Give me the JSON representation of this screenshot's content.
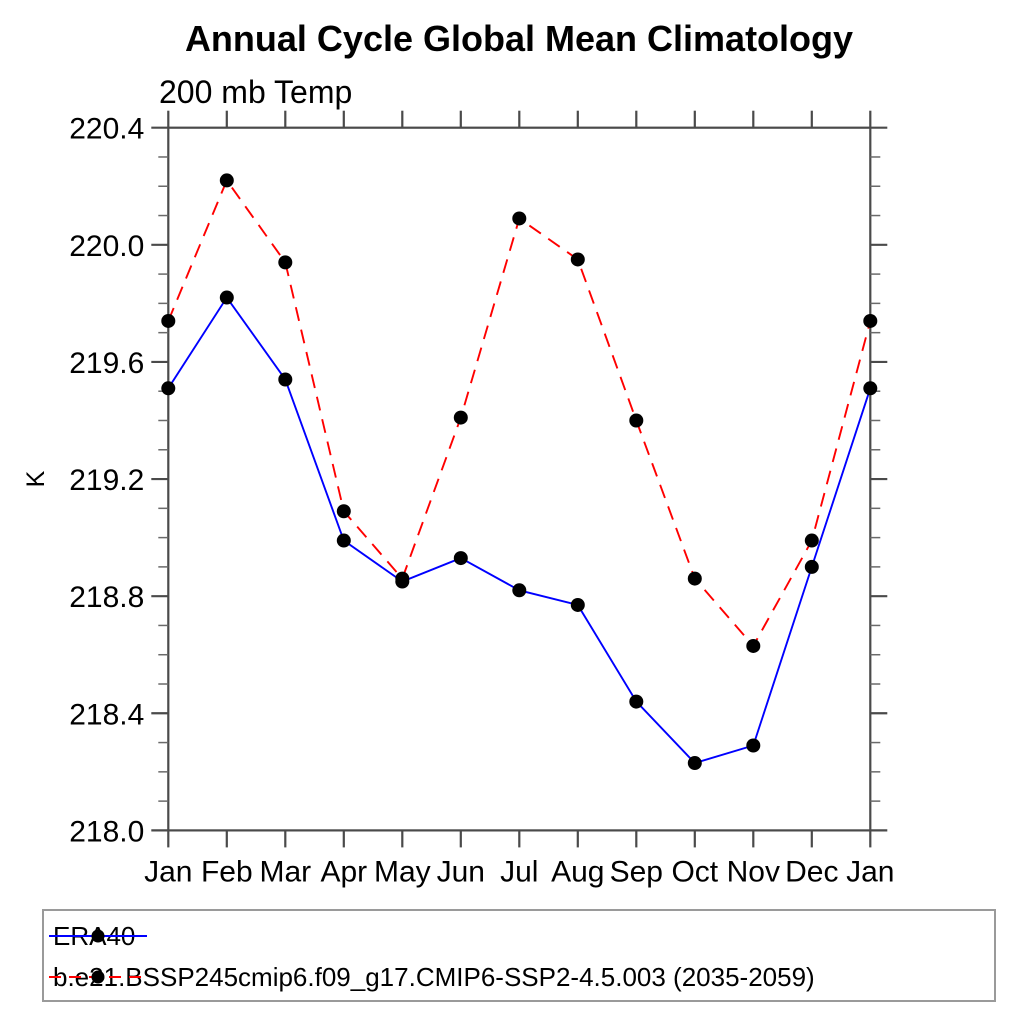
{
  "title": "Annual Cycle Global Mean Climatology",
  "subtitle": "200 mb Temp",
  "chart_data": {
    "type": "line",
    "title": "Annual Cycle Global Mean Climatology",
    "subtitle": "200 mb Temp",
    "xlabel": "",
    "ylabel": "K",
    "categories": [
      "Jan",
      "Feb",
      "Mar",
      "Apr",
      "May",
      "Jun",
      "Jul",
      "Aug",
      "Sep",
      "Oct",
      "Nov",
      "Dec",
      "Jan"
    ],
    "ylim": [
      218.0,
      220.4
    ],
    "ytick_major": 0.4,
    "ytick_minor": 0.1,
    "ytick_label_decimals": 1,
    "grid": false,
    "legend_position": "bottom-left-box",
    "marker": "filled-circle",
    "marker_color": "#000000",
    "axis_color": "#4a4a4a",
    "series": [
      {
        "name": "ERA40",
        "color": "#0000ff",
        "style": "solid",
        "values": [
          219.51,
          219.82,
          219.54,
          218.99,
          218.85,
          218.93,
          218.82,
          218.77,
          218.44,
          218.23,
          218.29,
          218.9,
          219.51
        ]
      },
      {
        "name": "b.e21.BSSP245cmip6.f09_g17.CMIP6-SSP2-4.5.003 (2035-2059)",
        "color": "#ff0000",
        "style": "dashed",
        "values": [
          219.74,
          220.22,
          219.94,
          219.09,
          218.86,
          219.41,
          220.09,
          219.95,
          219.4,
          218.86,
          218.63,
          218.99,
          219.74
        ]
      }
    ]
  }
}
